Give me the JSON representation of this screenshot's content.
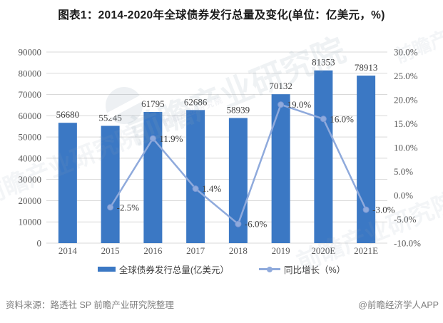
{
  "title": "图表1：2014-2020年全球债券发行总量及变化(单位：亿美元，%)",
  "chart_data": {
    "type": "bar",
    "subtype": "bar+line combo",
    "categories": [
      "2014",
      "2015",
      "2016",
      "2017",
      "2018",
      "2019",
      "2020E",
      "2021E"
    ],
    "series": [
      {
        "name": "全球债券发行总量(亿美元）",
        "type": "bar",
        "axis": "left",
        "values": [
          56680,
          55245,
          61795,
          62686,
          58939,
          70132,
          81353,
          78913
        ],
        "labels": [
          "56680",
          "55245",
          "61795",
          "62686",
          "58939",
          "70132",
          "81353",
          "78913"
        ]
      },
      {
        "name": "同比增长（%）",
        "type": "line",
        "axis": "right",
        "values": [
          null,
          -2.5,
          11.9,
          1.4,
          -6.0,
          19.0,
          16.0,
          -3.0
        ],
        "labels": [
          "",
          "-2.5%",
          "11.9%",
          "1.4%",
          "-6.0%",
          "19.0%",
          "16.0%",
          "-3.0%"
        ]
      }
    ],
    "left_axis": {
      "min": 0,
      "max": 90000,
      "step": 10000,
      "ticks": [
        "90000",
        "80000",
        "70000",
        "60000",
        "50000",
        "40000",
        "30000",
        "20000",
        "10000",
        "0"
      ]
    },
    "right_axis": {
      "min": -10,
      "max": 30,
      "step": 5,
      "ticks": [
        "30.0%",
        "25.0%",
        "20.0%",
        "15.0%",
        "10.0%",
        "5.0%",
        "0.0%",
        "-5.0%",
        "-10.0%"
      ]
    },
    "grid": true,
    "legend_position": "bottom"
  },
  "footer": {
    "source": "资料来源：路透社 SP 前瞻产业研究院整理",
    "credit": "@前瞻经济学人APP"
  },
  "watermark": {
    "text": "前瞻产业研究院"
  },
  "colors": {
    "bar": "#3B78C4",
    "line": "#8FAADC",
    "line_marker_stroke": "#7C99D6",
    "grid": "#D9D9D9",
    "axis_text": "#595959",
    "data_label": "#3d3d3d",
    "title_text": "#1A1A1A",
    "footer_text": "#7F7F7F"
  }
}
